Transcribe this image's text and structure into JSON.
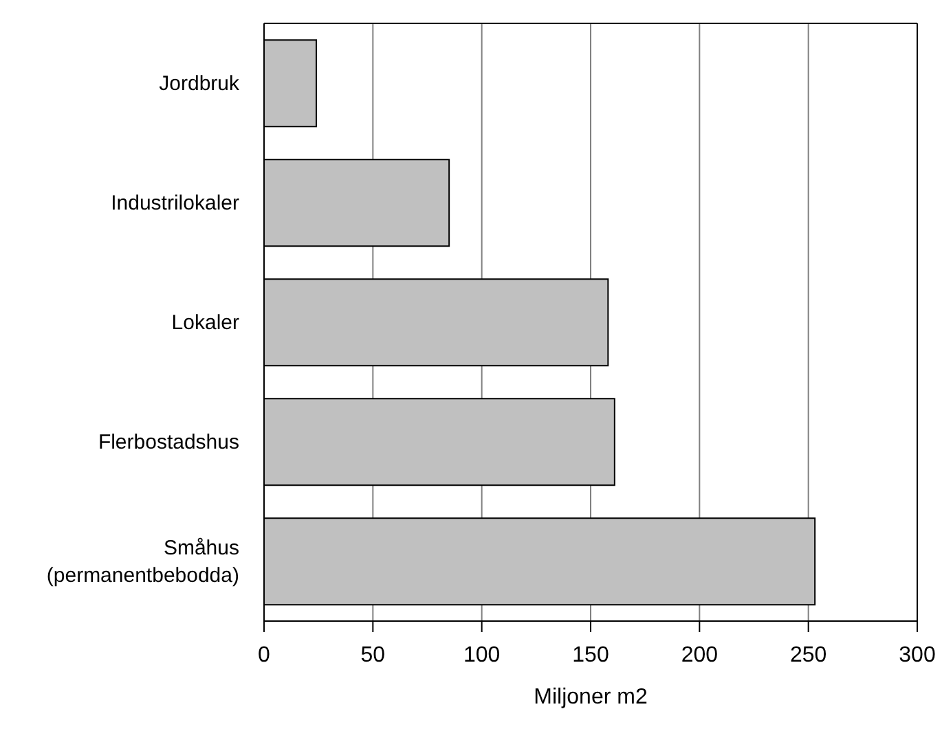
{
  "chart_data": {
    "type": "bar",
    "orientation": "horizontal",
    "xlabel": "Miljoner m2",
    "categories": [
      "Jordbruk",
      "Industrilokaler",
      "Lokaler",
      "Flerbostadshus",
      "Småhus (permanentbebodda)"
    ],
    "values": [
      24,
      85,
      158,
      161,
      253
    ],
    "color": "#c0c0c0",
    "xlim": [
      0,
      300
    ],
    "xticks": [
      0,
      50,
      100,
      150,
      200,
      250,
      300
    ],
    "grid": "x"
  }
}
